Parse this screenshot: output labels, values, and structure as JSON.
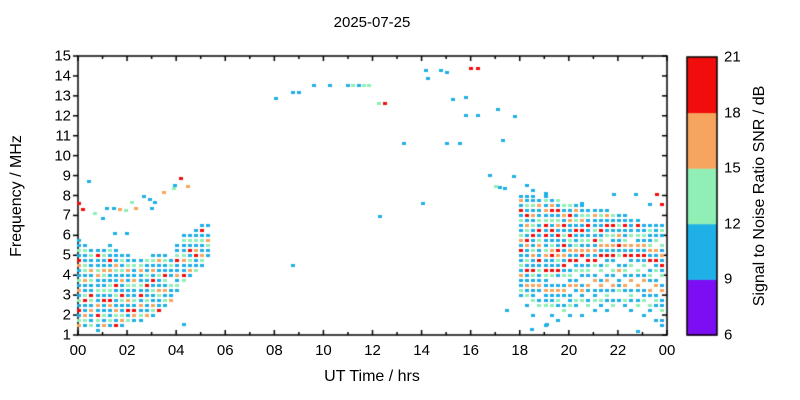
{
  "chart_data": {
    "type": "scatter",
    "title": "2025-07-25",
    "xlabel": "UT Time / hrs",
    "ylabel": "Frequency / MHz",
    "xlim": [
      0,
      24
    ],
    "ylim": [
      1,
      15
    ],
    "grid": false,
    "xticks": {
      "values": [
        0,
        2,
        4,
        6,
        8,
        10,
        12,
        14,
        16,
        18,
        20,
        22,
        24
      ],
      "labels": [
        "00",
        "02",
        "04",
        "06",
        "08",
        "10",
        "12",
        "14",
        "16",
        "18",
        "20",
        "22",
        "00"
      ]
    },
    "xminor": [
      1,
      3,
      5,
      7,
      9,
      11,
      13,
      15,
      17,
      19,
      21,
      23
    ],
    "yticks": [
      1,
      2,
      3,
      4,
      5,
      6,
      7,
      8,
      9,
      10,
      11,
      12,
      13,
      14,
      15
    ],
    "palette": {
      "p": "#7d0df2",
      "b": "#1fb0e8",
      "g": "#90efb5",
      "o": "#f7a55e",
      "r": "#f20d0d"
    },
    "colorbar": {
      "label": "Signal to Noise Ratio SNR / dB",
      "ticks": [
        21,
        18,
        15,
        12,
        9,
        6
      ],
      "segments": [
        {
          "from": 6,
          "to": 9,
          "color": "#7d0df2"
        },
        {
          "from": 9,
          "to": 12,
          "color": "#1fb0e8"
        },
        {
          "from": 12,
          "to": 15,
          "color": "#90efb5"
        },
        {
          "from": 15,
          "to": 18,
          "color": "#f7a55e"
        },
        {
          "from": 18,
          "to": 21,
          "color": "#f20d0d"
        }
      ]
    },
    "cell_df": 0.25,
    "marker": {
      "w": 4,
      "h": 3
    },
    "columns": [
      {
        "t": 0.05,
        "f0": 1.5,
        "cells": "ogbrbgbobgbborbgbb"
      },
      {
        "t": 0.3,
        "f0": 1.5,
        "cells": "bgobbrgbbobggbbgb"
      },
      {
        "t": 0.55,
        "f0": 1.5,
        "cells": "gbbobgrbbgbobbgb"
      },
      {
        "t": 0.8,
        "f0": 1.25,
        "cells": "bbgrbobbgbbogbbrb"
      },
      {
        "t": 1.05,
        "f0": 1.5,
        "cells": "obgbbrbgbbgobbgb"
      },
      {
        "t": 1.3,
        "f0": 1.5,
        "cells": "bgbborbggbbobrbgb"
      },
      {
        "t": 1.55,
        "f0": 1.5,
        "cells": "rbgobbgbrbbgobbb"
      },
      {
        "t": 1.8,
        "f0": 1.5,
        "cells": "bogbbgrbbobgbgb"
      },
      {
        "t": 2.05,
        "f0": 1.75,
        "cells": "gbrbobbgbbogbb"
      },
      {
        "t": 2.3,
        "f0": 1.75,
        "cells": "borbgbbgobbgb"
      },
      {
        "t": 2.55,
        "f0": 1.75,
        "cells": "bgbobrbgbbogb"
      },
      {
        "t": 2.8,
        "f0": 2.0,
        "cells": "obbgbbrbgbbg"
      },
      {
        "t": 3.05,
        "f0": 2.0,
        "cells": "bgobbgbrbobgb"
      },
      {
        "t": 3.3,
        "f0": 2.25,
        "cells": "rbbgobbgbbob"
      },
      {
        "t": 3.55,
        "f0": 2.5,
        "cells": "bgbobgrbbgb"
      },
      {
        "t": 3.8,
        "f0": 2.75,
        "cells": "obbg.bbgb"
      },
      {
        "t": 4.05,
        "f0": 3.25,
        "cells": "bgbobbrgbb"
      },
      {
        "t": 4.3,
        "f0": 3.75,
        "cells": "grbbogbbgb"
      },
      {
        "t": 4.55,
        "f0": 4.0,
        "cells": "bobgbrbgb"
      },
      {
        "t": 4.8,
        "f0": 4.25,
        "cells": "gbbrobgbb"
      },
      {
        "t": 5.05,
        "f0": 4.5,
        "cells": "bgobbgbrb"
      },
      {
        "t": 5.3,
        "f0": 5.0,
        "cells": "bbgob.b"
      },
      {
        "t": 18.05,
        "f0": 3.0,
        "cells": "bgbbobgbbrbogbbgbrbob"
      },
      {
        "t": 18.3,
        "f0": 2.5,
        "cells": "b.gbobbrbgbborbgobrbgbb"
      },
      {
        "t": 18.55,
        "f0": 2.0,
        "cells": "b..gbbobgrbbogbbrbgbobgbb"
      },
      {
        "t": 18.8,
        "f0": 2.5,
        "cells": "gb.bobbgbrbbogbrbgbbob"
      },
      {
        "t": 19.05,
        "f0": 1.5,
        "cells": "b...gbbobbgrbbogbbrbrgbobgb"
      },
      {
        "t": 19.3,
        "f0": 2.0,
        "cells": "b.gbbob.grbbrogbbrbgbrob"
      },
      {
        "t": 19.55,
        "f0": 1.75,
        "cells": "b..bgbob.brbgorbbrbogbrbg"
      },
      {
        "t": 19.8,
        "f0": 2.25,
        "cells": "gb.bob.gbrbobrbgbrbobg"
      },
      {
        "t": 20.05,
        "f0": 2.0,
        "cells": "b.gbb.obgb.rbobgrbborbg"
      },
      {
        "t": 20.3,
        "f0": 2.5,
        "cells": "bg.bob.gbrbogbbrbgbob"
      },
      {
        "t": 20.55,
        "f0": 2.0,
        "cells": "b..gbob.bgb.robgbrbogbb"
      },
      {
        "t": 20.8,
        "f0": 2.5,
        "cells": "gb.bo.bgbrbobgbbrbgb"
      },
      {
        "t": 21.05,
        "f0": 2.25,
        "cells": "b.gbb.ob.grbobrbgbbob"
      },
      {
        "t": 21.3,
        "f0": 2.5,
        "cells": "bg.bob.gb.rbogbrbbgb"
      },
      {
        "t": 21.55,
        "f0": 2.25,
        "cells": "b.bgb.ob.gbrbo.gbrbob"
      },
      {
        "t": 21.8,
        "f0": 2.5,
        "cells": "gb.bo.bg.brbobgbrbg"
      },
      {
        "t": 22.05,
        "f0": 2.75,
        "cells": "b.gbb.ob.gbrbobgbb"
      },
      {
        "t": 22.3,
        "f0": 2.5,
        "cells": "bg.bo.bgb.rbogbbrbb"
      },
      {
        "t": 22.55,
        "f0": 2.25,
        "cells": "b.bgb.ob.gbrbo.gbbb"
      },
      {
        "t": 22.8,
        "f0": 2.5,
        "cells": "gb.bo.bg.brbobgbrb"
      },
      {
        "t": 23.05,
        "f0": 2.0,
        "cells": "b..gbb.ob.gbrbobgbb"
      },
      {
        "t": 23.3,
        "f0": 2.25,
        "cells": "bg.bo.bgb.rbogbbgb"
      },
      {
        "t": 23.55,
        "f0": 1.75,
        "cells": "b..bgb.ob.gbrbo.gbbb"
      },
      {
        "t": 23.8,
        "f0": 1.5,
        "cells": "bb.gbb.ob.gbrbobg.bgb"
      }
    ],
    "singles": [
      [
        0.05,
        7.6,
        "r"
      ],
      [
        0.2,
        7.3,
        "r"
      ],
      [
        0.45,
        8.75,
        "b"
      ],
      [
        0.7,
        7.1,
        "g"
      ],
      [
        1.0,
        6.85,
        "b"
      ],
      [
        1.2,
        7.35,
        "b"
      ],
      [
        1.45,
        7.35,
        "b"
      ],
      [
        1.7,
        7.3,
        "o"
      ],
      [
        1.95,
        7.25,
        "g"
      ],
      [
        2.2,
        7.65,
        "g"
      ],
      [
        2.35,
        7.35,
        "o"
      ],
      [
        2.7,
        8.0,
        "b"
      ],
      [
        2.95,
        7.8,
        "b"
      ],
      [
        3.0,
        7.35,
        "b"
      ],
      [
        3.15,
        7.65,
        "b"
      ],
      [
        3.5,
        8.2,
        "o"
      ],
      [
        3.9,
        8.4,
        "g"
      ],
      [
        3.95,
        8.55,
        "b"
      ],
      [
        4.2,
        8.9,
        "r"
      ],
      [
        4.5,
        8.5,
        "o"
      ],
      [
        1.5,
        6.1,
        "b"
      ],
      [
        2.0,
        6.1,
        "b"
      ],
      [
        4.3,
        1.55,
        "b"
      ],
      [
        8.05,
        12.9,
        "b"
      ],
      [
        8.75,
        13.2,
        "b"
      ],
      [
        9.0,
        13.2,
        "b"
      ],
      [
        9.6,
        13.55,
        "b"
      ],
      [
        10.25,
        13.55,
        "b"
      ],
      [
        11.0,
        13.55,
        "b"
      ],
      [
        11.2,
        13.55,
        "g"
      ],
      [
        11.45,
        13.55,
        "b"
      ],
      [
        11.65,
        13.55,
        "g"
      ],
      [
        11.85,
        13.55,
        "g"
      ],
      [
        12.25,
        12.65,
        "g"
      ],
      [
        12.5,
        12.65,
        "r"
      ],
      [
        12.3,
        6.95,
        "b"
      ],
      [
        8.75,
        4.5,
        "b"
      ],
      [
        14.2,
        14.3,
        "b"
      ],
      [
        14.25,
        13.9,
        "b"
      ],
      [
        14.8,
        14.3,
        "b"
      ],
      [
        15.05,
        14.2,
        "b"
      ],
      [
        16.0,
        14.4,
        "r"
      ],
      [
        16.3,
        14.4,
        "r"
      ],
      [
        15.3,
        12.85,
        "b"
      ],
      [
        15.8,
        12.95,
        "b"
      ],
      [
        15.8,
        12.05,
        "b"
      ],
      [
        16.3,
        12.05,
        "b"
      ],
      [
        17.1,
        12.35,
        "b"
      ],
      [
        17.8,
        12.0,
        "b"
      ],
      [
        13.3,
        10.65,
        "b"
      ],
      [
        15.05,
        10.65,
        "b"
      ],
      [
        15.55,
        10.65,
        "b"
      ],
      [
        17.3,
        10.8,
        "b"
      ],
      [
        16.8,
        9.05,
        "b"
      ],
      [
        17.75,
        9.0,
        "b"
      ],
      [
        17.05,
        8.5,
        "g"
      ],
      [
        17.2,
        8.45,
        "b"
      ],
      [
        17.4,
        8.4,
        "b"
      ],
      [
        14.05,
        7.6,
        "b"
      ],
      [
        17.5,
        2.25,
        "b"
      ],
      [
        18.3,
        8.55,
        "b"
      ],
      [
        18.55,
        8.3,
        "b"
      ],
      [
        19.05,
        8.15,
        "b"
      ],
      [
        20.55,
        7.62,
        "b"
      ],
      [
        21.85,
        8.1,
        "b"
      ],
      [
        22.75,
        8.1,
        "b"
      ],
      [
        23.3,
        7.55,
        "b"
      ],
      [
        23.6,
        8.1,
        "r"
      ],
      [
        23.8,
        7.55,
        "r"
      ],
      [
        18.5,
        1.3,
        "b"
      ],
      [
        19.1,
        1.55,
        "b"
      ],
      [
        22.8,
        1.2,
        "b"
      ]
    ]
  }
}
